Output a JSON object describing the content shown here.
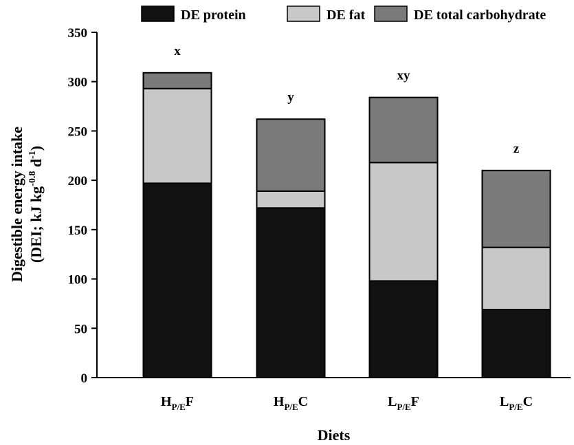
{
  "chart_data": {
    "type": "bar",
    "stacked": true,
    "categories": [
      {
        "base": "H",
        "sub": "P/E",
        "suffix": "F"
      },
      {
        "base": "H",
        "sub": "P/E",
        "suffix": "C"
      },
      {
        "base": "L",
        "sub": "P/E",
        "suffix": "F"
      },
      {
        "base": "L",
        "sub": "P/E",
        "suffix": "C"
      }
    ],
    "series": [
      {
        "name": "DE protein",
        "color": "#111111",
        "values": [
          197,
          172,
          98,
          69
        ]
      },
      {
        "name": "DE fat",
        "color": "#c8c8c8",
        "values": [
          96,
          17,
          120,
          63
        ]
      },
      {
        "name": "DE total carbohydrate",
        "color": "#7a7a7a",
        "values": [
          16,
          73,
          66,
          78
        ]
      }
    ],
    "significance_labels": [
      "x",
      "y",
      "xy",
      "z"
    ],
    "xlabel": "Diets",
    "ylabel": {
      "line1": "Digestible energy intake",
      "line2_prefix": "(DEI; kJ kg",
      "line2_sup1": "-0.8",
      "line2_mid": " d",
      "line2_sup2": "-1",
      "line2_suffix": ")"
    },
    "ylim": [
      0,
      350
    ],
    "yticks": [
      0,
      50,
      100,
      150,
      200,
      250,
      300,
      350
    ],
    "grid": false,
    "legend_position": "top"
  }
}
